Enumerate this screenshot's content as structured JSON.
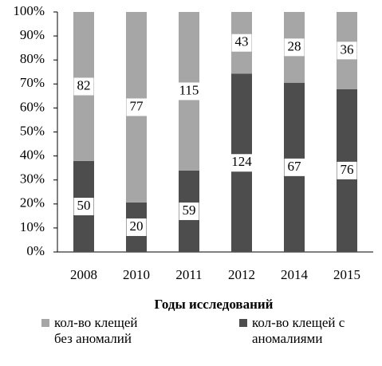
{
  "chart_data": {
    "type": "bar",
    "stacking": "percent",
    "categories": [
      "2008",
      "2010",
      "2011",
      "2012",
      "2014",
      "2015"
    ],
    "series": [
      {
        "name": "кол-во клещей с аномалиями",
        "color": "#4d4d4d",
        "values": [
          50,
          20,
          59,
          124,
          67,
          76
        ]
      },
      {
        "name": "кол-во  клещей без аномалий",
        "color": "#a6a6a6",
        "values": [
          82,
          77,
          115,
          43,
          28,
          36
        ]
      }
    ],
    "x_label": "Годы исследований",
    "ylim": [
      0,
      100
    ],
    "yticks": [
      {
        "value": 0,
        "label": "0%"
      },
      {
        "value": 10,
        "label": "10%"
      },
      {
        "value": 20,
        "label": "20%"
      },
      {
        "value": 30,
        "label": "30%"
      },
      {
        "value": 40,
        "label": "40%"
      },
      {
        "value": 50,
        "label": "50%"
      },
      {
        "value": 60,
        "label": "60%"
      },
      {
        "value": 70,
        "label": "70%"
      },
      {
        "value": 80,
        "label": "80%"
      },
      {
        "value": 90,
        "label": "90%"
      },
      {
        "value": 100,
        "label": "100%"
      }
    ],
    "legend": "bottom"
  }
}
